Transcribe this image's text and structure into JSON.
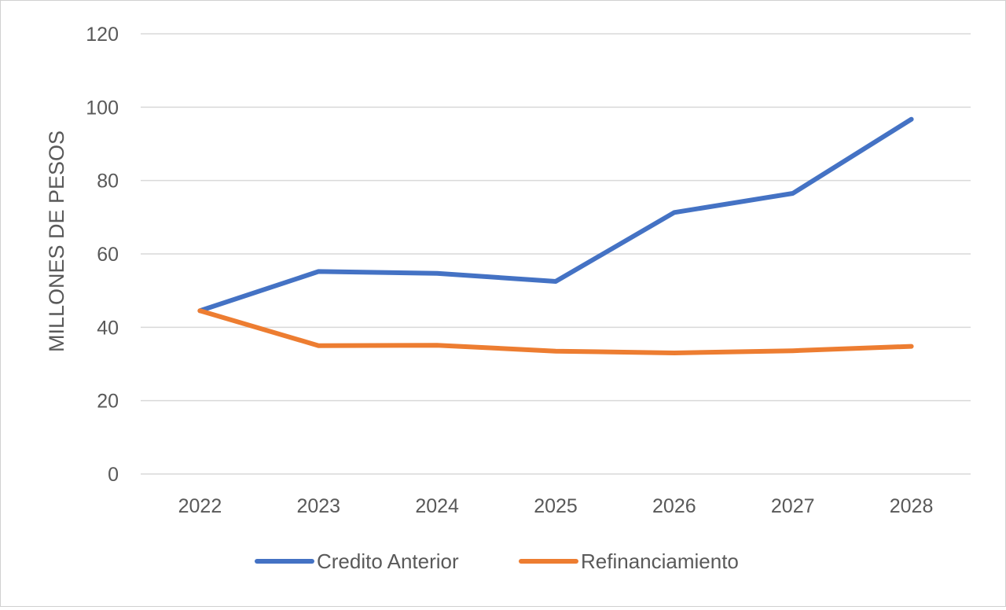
{
  "chart_data": {
    "type": "line",
    "title": "",
    "xlabel": "",
    "ylabel": "MILLONES DE PESOS",
    "ylim": [
      0,
      120
    ],
    "yticks": [
      0,
      20,
      40,
      60,
      80,
      100,
      120
    ],
    "categories": [
      "2022",
      "2023",
      "2024",
      "2025",
      "2026",
      "2027",
      "2028"
    ],
    "grid": true,
    "legend_position": "bottom",
    "series": [
      {
        "name": "Credito Anterior",
        "color": "#4472C4",
        "values": [
          44.5,
          55.2,
          54.7,
          52.5,
          71.3,
          76.5,
          96.7
        ]
      },
      {
        "name": "Refinanciamiento",
        "color": "#ED7D31",
        "values": [
          44.5,
          35.0,
          35.1,
          33.5,
          33.0,
          33.6,
          34.8
        ]
      }
    ]
  }
}
